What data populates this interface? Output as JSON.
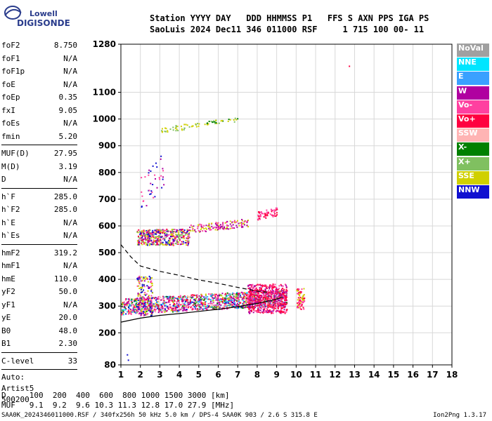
{
  "logo": {
    "line1": "Lowell",
    "line2": "DIGISONDE"
  },
  "header": {
    "line1": "Station YYYY DAY   DDD HHMMSS P1   FFS S AXN PPS IGA PS",
    "line2": "SaoLuis 2024 Dec11 346 011000 RSF     1 715 100 00- 11"
  },
  "params": {
    "group1": [
      {
        "name": "foF2",
        "value": "8.750"
      },
      {
        "name": "foF1",
        "value": "N/A"
      },
      {
        "name": "foF1p",
        "value": "N/A"
      },
      {
        "name": "foE",
        "value": "N/A"
      },
      {
        "name": "foEp",
        "value": "0.35"
      },
      {
        "name": "fxI",
        "value": "9.05"
      },
      {
        "name": "foEs",
        "value": "N/A"
      },
      {
        "name": "fmin",
        "value": "5.20"
      }
    ],
    "group2": [
      {
        "name": "MUF(D)",
        "value": "27.95"
      },
      {
        "name": "M(D)",
        "value": "3.19"
      },
      {
        "name": "D",
        "value": "N/A"
      }
    ],
    "group3": [
      {
        "name": "h`F",
        "value": "285.0"
      },
      {
        "name": "h`F2",
        "value": "285.0"
      },
      {
        "name": "h`E",
        "value": "N/A"
      },
      {
        "name": "h`Es",
        "value": "N/A"
      }
    ],
    "group4": [
      {
        "name": "hmF2",
        "value": "319.2"
      },
      {
        "name": "hmF1",
        "value": "N/A"
      },
      {
        "name": "hmE",
        "value": "110.0"
      },
      {
        "name": "yF2",
        "value": "50.0"
      },
      {
        "name": "yF1",
        "value": "N/A"
      },
      {
        "name": "yE",
        "value": "20.0"
      },
      {
        "name": "B0",
        "value": "48.0"
      },
      {
        "name": "B1",
        "value": "2.30"
      }
    ],
    "clevel": {
      "name": "C-level",
      "value": "33"
    },
    "auto": [
      "Auto:",
      "Artist5",
      "500200"
    ]
  },
  "legend": [
    {
      "label": "NoVal",
      "color": "#a0a0a0"
    },
    {
      "label": "NNE",
      "color": "#00e5ff"
    },
    {
      "label": "E",
      "color": "#3aa0ff"
    },
    {
      "label": "W",
      "color": "#b000a0"
    },
    {
      "label": "Vo-",
      "color": "#ff40a0"
    },
    {
      "label": "Vo+",
      "color": "#ff0040"
    },
    {
      "label": "SSW",
      "color": "#ffb4b4"
    },
    {
      "label": "X-",
      "color": "#008000"
    },
    {
      "label": "X+",
      "color": "#80c060"
    },
    {
      "label": "SSE",
      "color": "#d0d000"
    },
    {
      "label": "NNW",
      "color": "#1010d0"
    }
  ],
  "chart_data": {
    "type": "scatter",
    "xlim": [
      1,
      18
    ],
    "ylim": [
      80,
      1280
    ],
    "x_ticks": [
      1,
      2,
      3,
      4,
      5,
      6,
      7,
      8,
      9,
      10,
      11,
      12,
      13,
      14,
      15,
      16,
      17,
      18
    ],
    "y_ticks": [
      80,
      200,
      300,
      400,
      500,
      600,
      700,
      800,
      900,
      1000,
      1100,
      1280
    ],
    "grid": true,
    "legend_position": "right",
    "curves": {
      "solid": {
        "x": [
          1,
          2,
          3,
          4,
          5,
          6,
          7,
          8,
          9,
          9.3
        ],
        "y": [
          240,
          255,
          265,
          272,
          280,
          288,
          298,
          310,
          326,
          333
        ]
      },
      "dashed": {
        "x": [
          1,
          1.5,
          2,
          3,
          4,
          5,
          6,
          7,
          8,
          8.5
        ],
        "y": [
          530,
          485,
          450,
          430,
          415,
          398,
          385,
          370,
          356,
          352
        ]
      }
    }
  },
  "footer": {
    "line1": "D     100  200  400  600  800 1000 1500 3000 [km]",
    "line2": "MUF   9.1  9.2  9.6 10.3 11.3 12.8 17.0 27.9 [MHz]",
    "file": "SAA0K_2024346011000.RSF / 340fx256h 50 kHz 5.0 km / DPS-4 SAA0K 903 / 2.6 S 315.8 E",
    "version": "Ion2Png 1.3.17"
  }
}
